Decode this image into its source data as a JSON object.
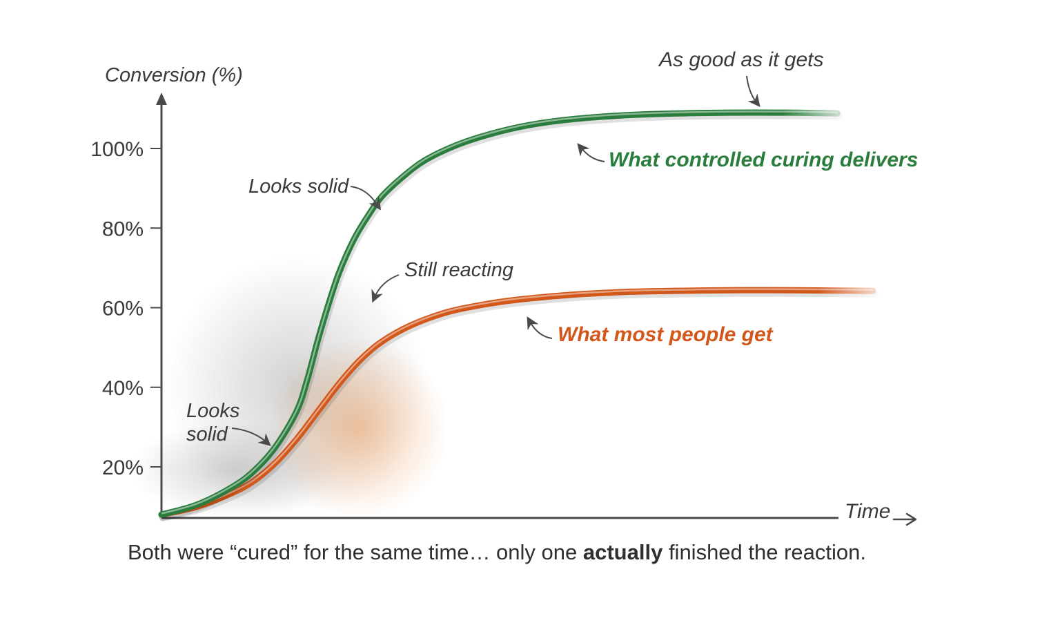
{
  "colors": {
    "green": "#2a7d3c",
    "orange": "#d2571a",
    "axis": "#4a4a4a",
    "grid": "#d6d6d6",
    "text": "#3a3a3a"
  },
  "chart_data": {
    "type": "line",
    "ylabel": "Conversion (%)",
    "xlabel": "Time",
    "ylim": [
      7,
      115
    ],
    "xlim": [
      0,
      100
    ],
    "yticks": [
      {
        "value": 20,
        "label": "20%"
      },
      {
        "value": 40,
        "label": "40%"
      },
      {
        "value": 60,
        "label": "60%"
      },
      {
        "value": 80,
        "label": "80%"
      },
      {
        "value": 100,
        "label": "100%"
      }
    ],
    "grid": true,
    "series": [
      {
        "name": "What controlled curing delivers",
        "color": "#2a7d3c",
        "x": [
          0,
          5,
          10,
          13,
          16,
          19,
          20.5,
          22,
          23.5,
          25,
          27,
          29,
          31,
          34,
          37,
          41,
          45,
          50,
          55,
          62,
          70,
          80,
          88,
          92,
          95
        ],
        "y": [
          8,
          10.5,
          15,
          19,
          25,
          34,
          42,
          52,
          61,
          69,
          77,
          83,
          88,
          93,
          97,
          100.5,
          103,
          105.3,
          106.8,
          108,
          108.7,
          109,
          109,
          108.9,
          108.8
        ]
      },
      {
        "name": "What most people get",
        "color": "#d2571a",
        "x": [
          0,
          5,
          10,
          13,
          16,
          19,
          22,
          25,
          28,
          31,
          35,
          40,
          45,
          50,
          58,
          66,
          75,
          85,
          95,
          100
        ],
        "y": [
          8,
          10,
          13.5,
          16.5,
          21,
          27,
          34,
          41,
          47,
          51.5,
          55.5,
          58.8,
          60.7,
          62,
          63.3,
          64,
          64.3,
          64.4,
          64.3,
          64.2
        ]
      }
    ],
    "annotations": [
      {
        "text": "As good as it gets",
        "style": "gray"
      },
      {
        "text": "What controlled curing delivers",
        "style": "green"
      },
      {
        "text": "Looks solid",
        "style": "gray"
      },
      {
        "text": "Still reacting",
        "style": "gray"
      },
      {
        "text": "What most people get",
        "style": "orange"
      },
      {
        "text": "Looks",
        "style": "gray"
      },
      {
        "text": "solid",
        "style": "gray"
      }
    ]
  },
  "caption": {
    "before": "Both were “cured” for the same time… only one ",
    "bold": "actually",
    "after": " finished the reaction."
  }
}
